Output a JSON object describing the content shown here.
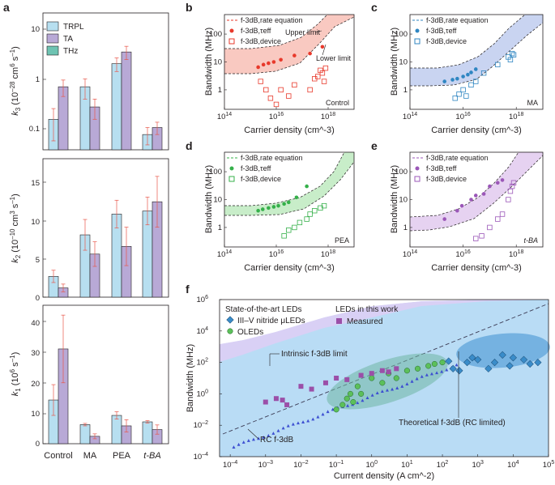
{
  "panels": {
    "a": "a",
    "b": "b",
    "c": "c",
    "d": "d",
    "e": "e",
    "f": "f"
  },
  "colors": {
    "trpl": "#b7dff0",
    "ta": "#b8a9d6",
    "thz": "#6ec3b2",
    "err": "#e8574a",
    "red": "#e8392b",
    "redband": "#f9c9c1",
    "blue": "#2f86c2",
    "blueband": "#c9d4f1",
    "green": "#35b04a",
    "greenband": "#c8edc9",
    "purple": "#9b57b8",
    "purpleband": "#e6d2f1",
    "fbg": "#b9dcf5",
    "fpurple": "#d9d0f5",
    "nitride": "#3a8cc9",
    "oled": "#5cc05a",
    "measured": "#9b4fa8",
    "rc": "#3d4fd1"
  },
  "panel_a": {
    "legend": [
      "TRPL",
      "TA",
      "THz"
    ],
    "categories": [
      "Control",
      "MA",
      "PEA",
      "t-BA"
    ],
    "k3": {
      "ylabel": "k3 (10^-28 cm^6 s^-1)",
      "ylim": [
        0.04,
        20
      ],
      "scale": "log",
      "ticks": [
        "0.1",
        "1",
        "10"
      ],
      "values": {
        "TRPL": [
          0.16,
          0.7,
          2.0,
          0.08
        ],
        "TA": [
          0.7,
          0.28,
          3.4,
          0.11
        ],
        "THz": [
          null,
          null,
          null,
          null
        ]
      },
      "errors": {
        "TRPL": [
          0.1,
          0.3,
          0.6,
          0.03
        ],
        "TA": [
          0.25,
          0.12,
          1.0,
          0.03
        ]
      }
    },
    "k2": {
      "ylabel": "k2 (10^-10 cm^3 s^-1)",
      "ylim": [
        0,
        18
      ],
      "ticks": [
        "0",
        "5",
        "10",
        "15"
      ],
      "values": {
        "TRPL": [
          2.7,
          8.1,
          10.8,
          11.2
        ],
        "TA": [
          1.2,
          5.6,
          6.6,
          12.4
        ]
      },
      "errors": {
        "TRPL": [
          0.8,
          2.0,
          1.8,
          1.8
        ],
        "TA": [
          0.5,
          1.6,
          2.5,
          3.3
        ]
      }
    },
    "k1": {
      "ylabel": "k1 (10^6 s^-1)",
      "ylim": [
        0,
        45
      ],
      "ticks": [
        "0",
        "10",
        "20",
        "30",
        "40"
      ],
      "values": {
        "TRPL": [
          14.2,
          6.2,
          9.2,
          7.1
        ],
        "TA": [
          30.8,
          2.4,
          5.8,
          4.6
        ]
      },
      "errors": {
        "TRPL": [
          5,
          0.4,
          1.2,
          0.4
        ],
        "TA": [
          11,
          0.8,
          2,
          1.5
        ]
      }
    }
  },
  "small_panels": {
    "ylabel": "Bandwidth (MHz)",
    "xlabel": "Carrier density (cm^-3)",
    "xticks": [
      "10^14",
      "10^16",
      "10^18"
    ],
    "yticks": [
      "1",
      "10",
      "100"
    ],
    "legend_rate": "f-3dB,rate equation",
    "legend_teff": "f-3dB,τeff",
    "legend_device": "f-3dB,device",
    "b_label": "Control",
    "c_label": "MA",
    "d_label": "PEA",
    "e_label": "t-BA",
    "upper_limit": "Upper limit",
    "lower_limit": "Lower limit"
  },
  "panel_f": {
    "ylabel": "Bandwidth (MHz)",
    "xlabel": "Current density (A cm^-2)",
    "xticks": [
      "10^-4",
      "10^-3",
      "10^-2",
      "10^-1",
      "10^0",
      "10^1",
      "10^2",
      "10^3",
      "10^4",
      "10^5"
    ],
    "yticks": [
      "10^-4",
      "10^-2",
      "10^0",
      "10^2",
      "10^4",
      "10^6"
    ],
    "soa_title": "State-of-the-art LEDs",
    "lw_title": "LEDs in this work",
    "leg_nitride": "III–V nitride μLEDs",
    "leg_oled": "OLEDs",
    "leg_measured": "Measured",
    "intrinsic": "Intrinsic f-3dB limit",
    "theoretical": "Theoretical f-3dB (RC limited)",
    "rc": "RC f-3dB"
  },
  "chart_data": [
    {
      "type": "bar",
      "panel": "a-top",
      "title": "k3",
      "categories": [
        "Control",
        "MA",
        "PEA",
        "t-BA"
      ],
      "series": [
        {
          "name": "TRPL",
          "values": [
            0.16,
            0.7,
            2.0,
            0.08
          ]
        },
        {
          "name": "TA",
          "values": [
            0.7,
            0.28,
            3.4,
            0.11
          ]
        }
      ],
      "yscale": "log"
    },
    {
      "type": "bar",
      "panel": "a-mid",
      "title": "k2",
      "categories": [
        "Control",
        "MA",
        "PEA",
        "t-BA"
      ],
      "series": [
        {
          "name": "TRPL",
          "values": [
            2.7,
            8.1,
            10.8,
            11.2
          ]
        },
        {
          "name": "TA",
          "values": [
            1.2,
            5.6,
            6.6,
            12.4
          ]
        }
      ]
    },
    {
      "type": "bar",
      "panel": "a-bot",
      "title": "k1",
      "categories": [
        "Control",
        "MA",
        "PEA",
        "t-BA"
      ],
      "series": [
        {
          "name": "TRPL",
          "values": [
            14.2,
            6.2,
            9.2,
            7.1
          ]
        },
        {
          "name": "TA",
          "values": [
            30.8,
            2.4,
            5.8,
            4.6
          ]
        }
      ]
    },
    {
      "type": "scatter",
      "panel": "b",
      "label": "Control",
      "xscale": "log",
      "yscale": "log",
      "xlim": [
        100000000000000.0,
        1e+19
      ],
      "ylim": [
        0.2,
        500
      ],
      "band_lower": [
        4.2,
        4.2,
        4.3,
        5,
        8,
        20,
        60,
        180
      ],
      "band_upper": [
        9,
        9,
        9.5,
        11,
        18,
        40,
        120,
        350
      ],
      "band_x": [
        100000000000000.0,
        1000000000000000.0,
        3000000000000000.0,
        1e+16,
        3e+16,
        1e+17,
        3e+17,
        1e+18
      ],
      "teff": {
        "x": [
          2000000000000000.0,
          3200000000000000.0,
          5000000000000000.0,
          8000000000000000.0,
          1.5e+16,
          5e+16,
          2e+17,
          6e+17
        ],
        "y": [
          6.5,
          8,
          9,
          10,
          12,
          17,
          20,
          35
        ]
      },
      "device": {
        "x": [
          2500000000000000.0,
          4000000000000000.0,
          6000000000000000.0,
          1e+16,
          1.5e+16,
          3e+16,
          5e+16,
          2e+17,
          3e+17,
          4e+17,
          5e+17,
          6e+17,
          7e+17,
          8e+17
        ],
        "y": [
          2,
          1,
          0.5,
          0.3,
          1,
          0.6,
          1.5,
          1,
          2.5,
          3,
          5,
          4,
          2,
          6
        ]
      }
    },
    {
      "type": "scatter",
      "panel": "c",
      "label": "MA",
      "xscale": "log",
      "yscale": "log",
      "teff": {
        "x": [
          2000000000000000.0,
          4000000000000000.0,
          6000000000000000.0,
          1e+16,
          1.5e+16,
          2e+16,
          3e+16
        ],
        "y": [
          2,
          2.3,
          2.5,
          3,
          3.5,
          4.2,
          5.5
        ]
      },
      "device": {
        "x": [
          5000000000000000.0,
          7000000000000000.0,
          1e+16,
          1.3e+16,
          2e+16,
          3e+16,
          6e+16,
          2e+17,
          5e+17,
          6e+17,
          7e+17,
          8e+17
        ],
        "y": [
          0.5,
          0.7,
          1,
          0.6,
          1.5,
          2,
          4,
          8,
          15,
          12,
          20,
          18
        ]
      }
    },
    {
      "type": "scatter",
      "panel": "d",
      "label": "PEA",
      "xscale": "log",
      "yscale": "log",
      "teff": {
        "x": [
          2000000000000000.0,
          3000000000000000.0,
          5000000000000000.0,
          8000000000000000.0,
          1.2e+16,
          2e+16,
          3e+16,
          6e+16,
          1.5e+17
        ],
        "y": [
          4,
          4.5,
          5,
          5.5,
          6,
          7,
          8,
          12,
          30
        ]
      },
      "device": {
        "x": [
          2e+16,
          3e+16,
          5e+16,
          8e+16,
          1.5e+17,
          2e+17,
          3e+17,
          5e+17,
          7e+17
        ],
        "y": [
          0.5,
          0.8,
          1,
          1.5,
          2,
          3,
          4,
          5,
          6
        ]
      }
    },
    {
      "type": "scatter",
      "panel": "e",
      "label": "t-BA",
      "xscale": "log",
      "yscale": "log",
      "teff": {
        "x": [
          2000000000000000.0,
          6000000000000000.0,
          9000000000000000.0,
          2e+16,
          3e+16,
          6e+16,
          1e+17,
          2e+17,
          3e+17
        ],
        "y": [
          2,
          4,
          6,
          10,
          14,
          16,
          30,
          40,
          50
        ]
      },
      "device": {
        "x": [
          3e+16,
          5e+16,
          1e+17,
          2e+17,
          3e+17,
          5e+17,
          6e+17,
          7e+17,
          8e+17
        ],
        "y": [
          0.4,
          0.5,
          1,
          2,
          3,
          10,
          20,
          30,
          40
        ]
      }
    },
    {
      "type": "scatter",
      "panel": "f",
      "xscale": "log",
      "yscale": "log",
      "xlim": [
        5e-05,
        100000.0
      ],
      "ylim": [
        0.0001,
        1000000.0
      ],
      "nitride": {
        "x": [
          300,
          500,
          700,
          1000,
          2000,
          3000,
          5000,
          8000,
          10000,
          20000,
          30000,
          50000,
          150,
          200
        ],
        "y": [
          30,
          100,
          200,
          150,
          40,
          100,
          300,
          60,
          200,
          150,
          80,
          100,
          120,
          40
        ]
      },
      "oled": {
        "x": [
          0.1,
          0.15,
          0.2,
          0.25,
          0.3,
          0.4,
          0.5,
          1,
          2,
          3,
          5,
          10,
          20,
          40,
          60,
          100
        ],
        "y": [
          0.1,
          0.2,
          0.5,
          1,
          0.3,
          3,
          1,
          10,
          5,
          20,
          10,
          30,
          40,
          60,
          80,
          100
        ]
      },
      "measured": {
        "x": [
          0.001,
          0.002,
          0.003,
          0.004,
          0.01,
          0.02,
          0.05,
          0.1,
          0.2,
          0.5,
          1,
          2,
          3,
          5
        ],
        "y": [
          0.3,
          0.5,
          0.4,
          0.2,
          3,
          2,
          5,
          10,
          8,
          15,
          20,
          30,
          25,
          40
        ]
      }
    }
  ]
}
